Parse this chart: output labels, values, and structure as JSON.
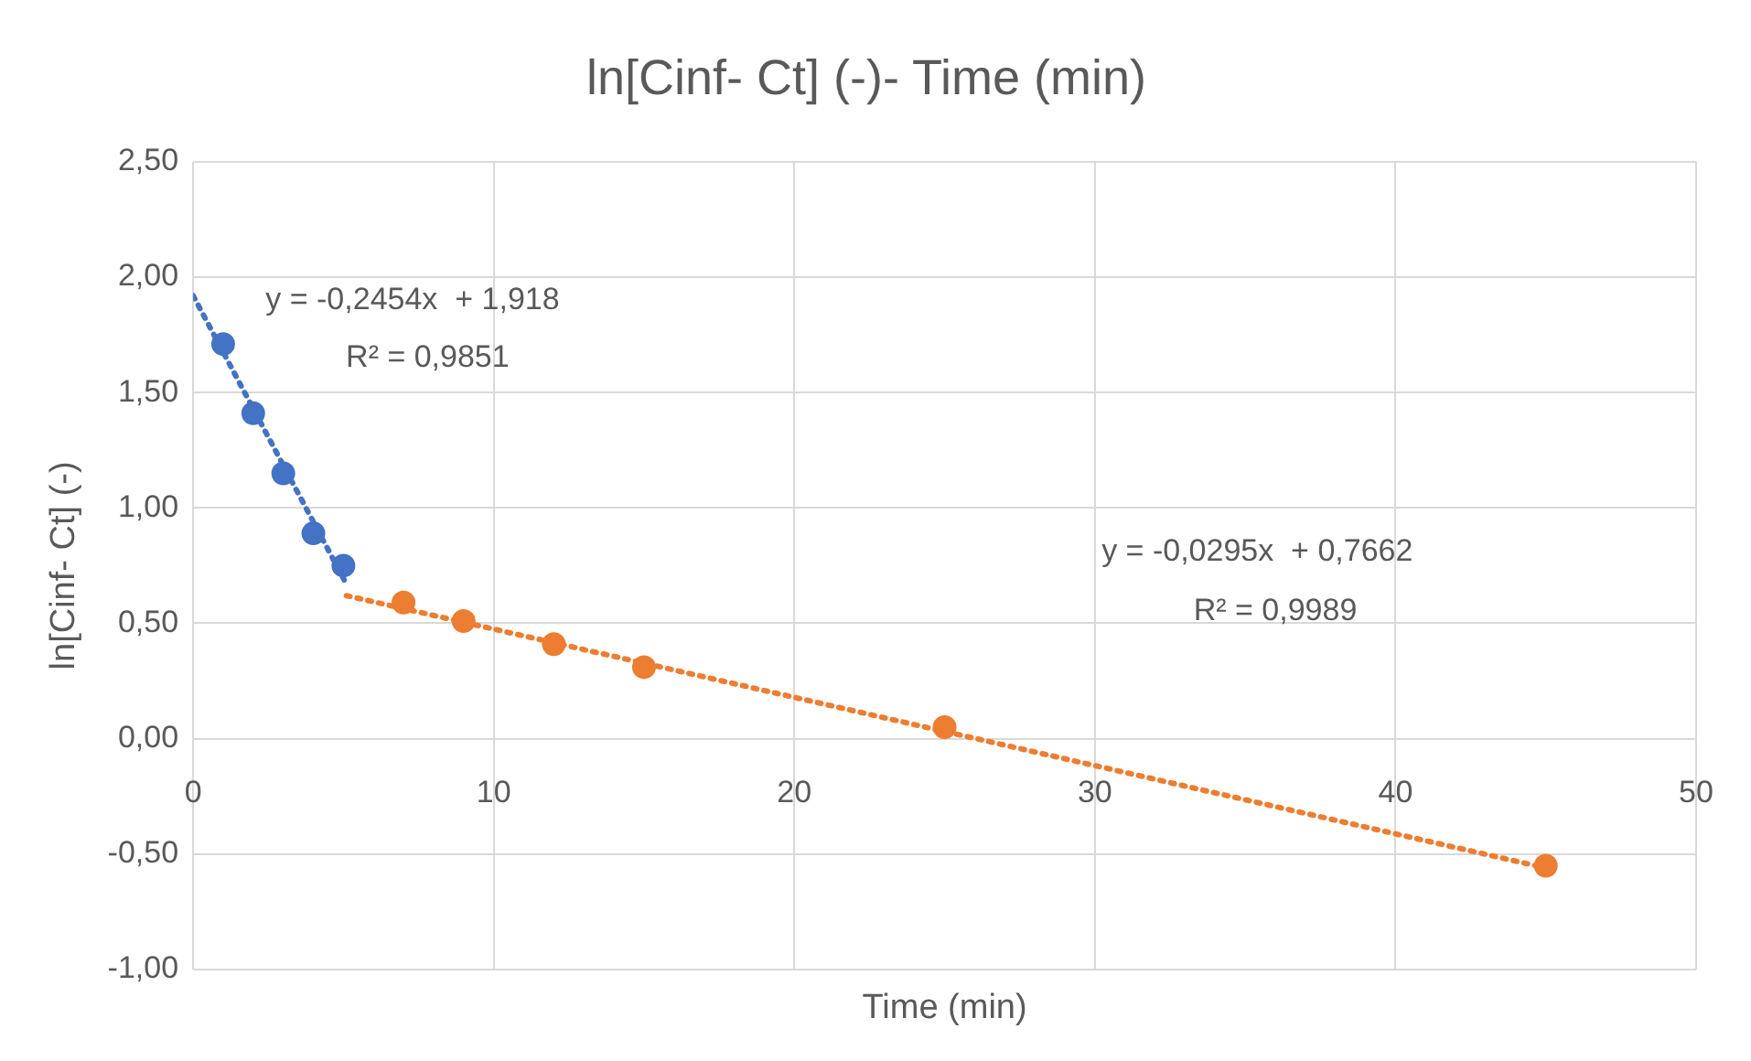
{
  "chart_data": {
    "type": "scatter",
    "title": "ln[Cinf- Ct] (-)- Time (min)",
    "xlabel": "Time (min)",
    "ylabel": "ln[Cinf- Ct] (-)",
    "xlim": [
      0,
      50
    ],
    "xticks": [
      0,
      10,
      20,
      30,
      40,
      50
    ],
    "ylim": [
      -1,
      2.5
    ],
    "yticks": [
      {
        "value": -1,
        "label": "-1,00"
      },
      {
        "value": -0.5,
        "label": "-0,50"
      },
      {
        "value": 0,
        "label": "0,00"
      },
      {
        "value": 0.5,
        "label": "0,50"
      },
      {
        "value": 1,
        "label": "1,00"
      },
      {
        "value": 1.5,
        "label": "1,50"
      },
      {
        "value": 2,
        "label": "2,00"
      },
      {
        "value": 2.5,
        "label": "2,50"
      }
    ],
    "grid": true,
    "legend": false,
    "marker": "circle",
    "series": [
      {
        "type": "line",
        "color": "#4472c4",
        "line_style": "dotted",
        "marker": "none",
        "x": [
          0,
          5.1
        ],
        "values": [
          1.92,
          0.67
        ]
      },
      {
        "type": "line",
        "color": "#ed7d31",
        "line_style": "dotted",
        "marker": "none",
        "x": [
          5.1,
          45
        ],
        "values": [
          0.62,
          -0.56
        ]
      },
      {
        "color": "#4472c4",
        "x": [
          1,
          2,
          3,
          4,
          5
        ],
        "values": [
          1.71,
          1.41,
          1.15,
          0.89,
          0.75
        ]
      },
      {
        "color": "#ed7d31",
        "x": [
          7,
          9,
          12,
          15,
          25,
          45
        ],
        "values": [
          0.59,
          0.51,
          0.41,
          0.31,
          0.05,
          -0.55
        ]
      }
    ],
    "annotations": [
      "y = -0,2454x  + 1,918",
      "R² = 0,9851",
      "y = -0,0295x  + 0,7662",
      "R² = 0,9989"
    ]
  }
}
